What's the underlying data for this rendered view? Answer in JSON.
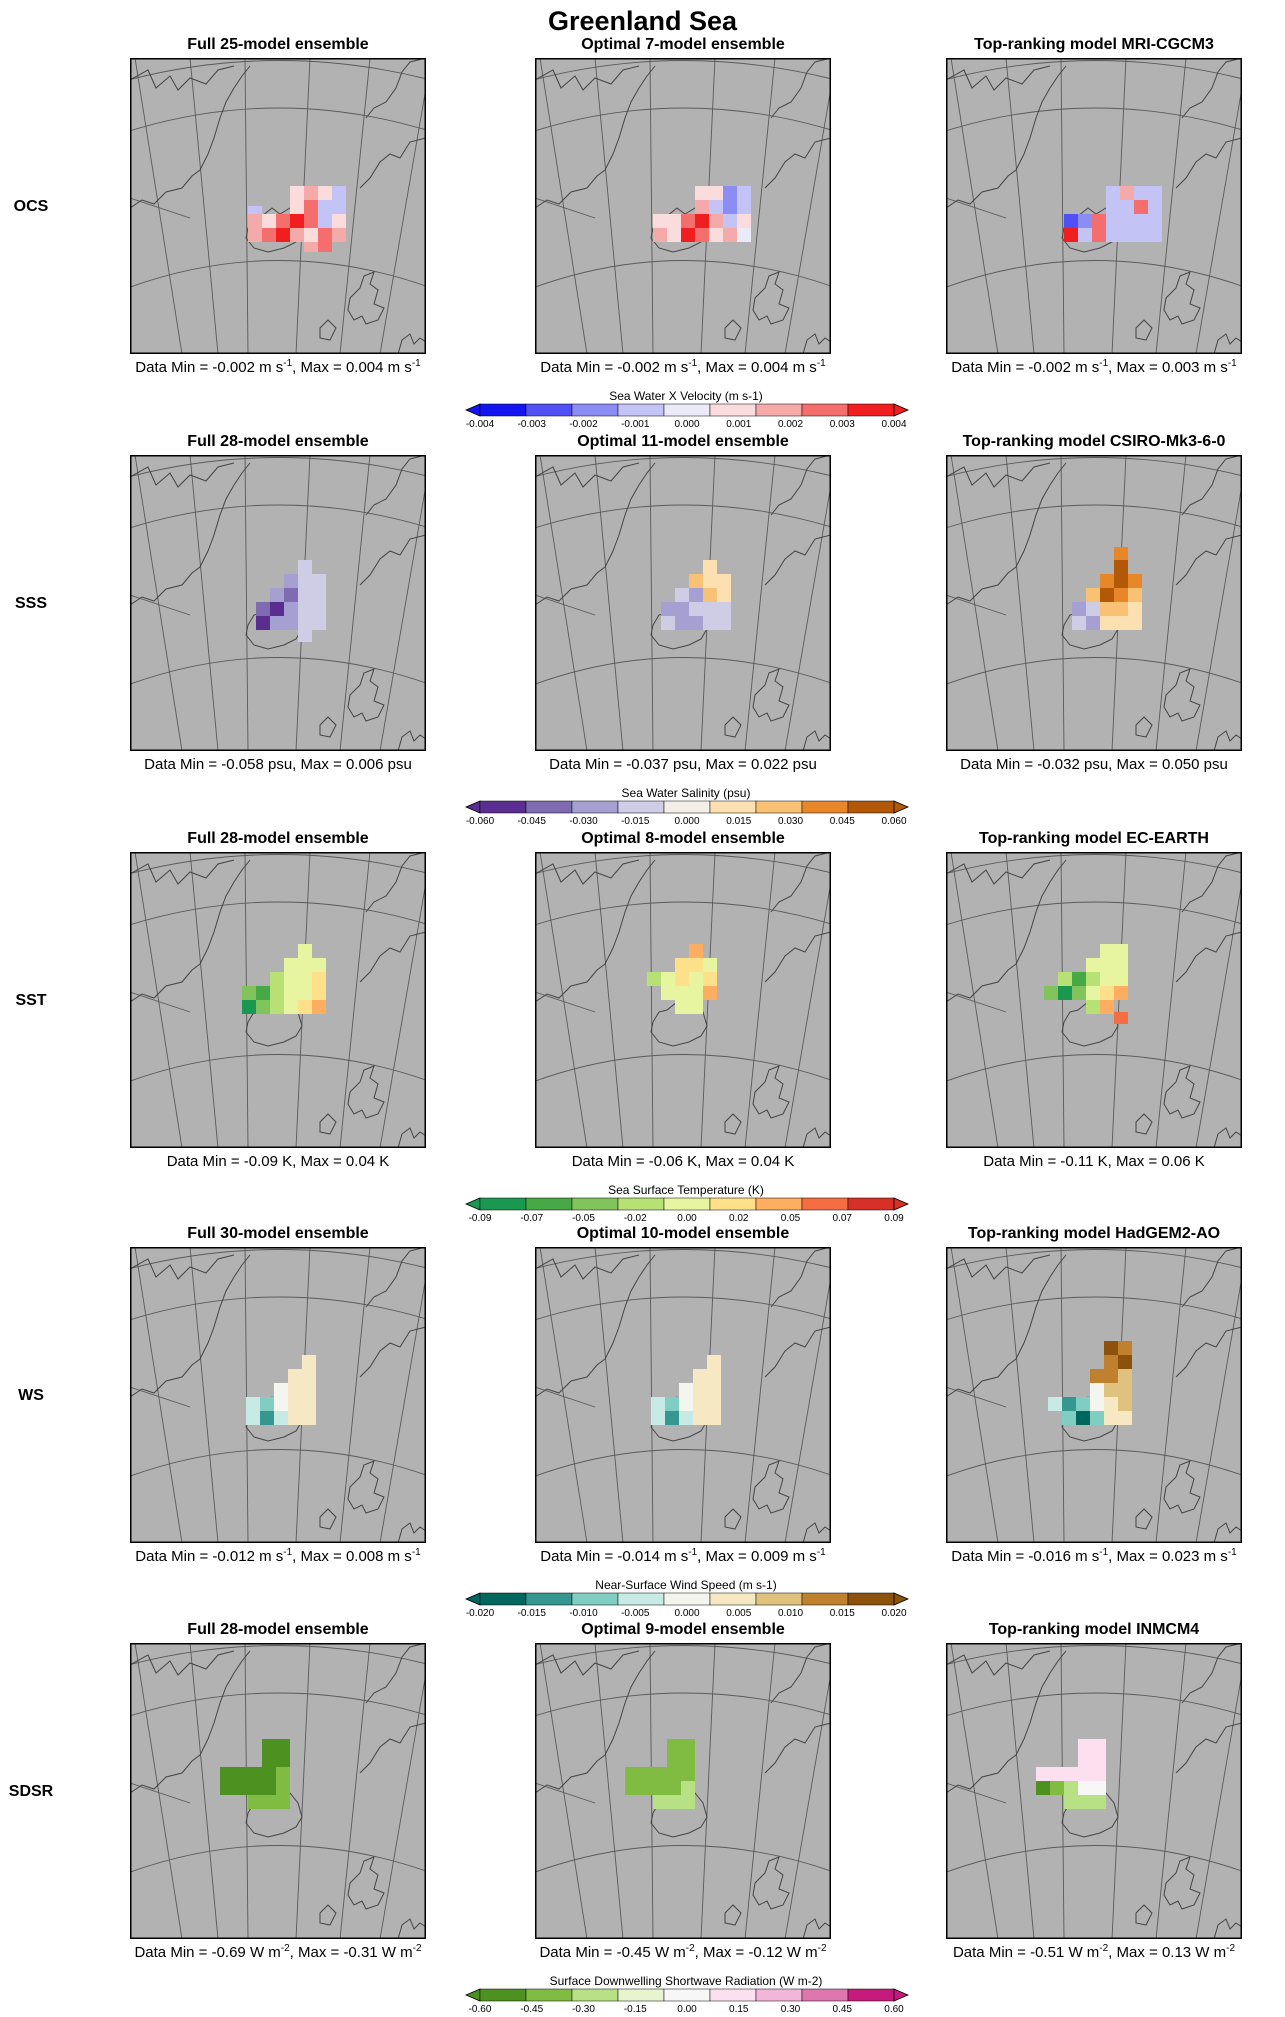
{
  "title": "Greenland Sea",
  "colors": {
    "land": "#b2b2b2",
    "border": "#000000",
    "graticule": "#5a5a5a",
    "coastline": "#444444"
  },
  "rows": [
    {
      "label": "OCS",
      "panels": [
        {
          "title": "Full 25-model ensemble",
          "caption": {
            "prefix": "Data Min = -0.002 m s",
            "sup1": "-1",
            "mid": ", Max = 0.004 m s",
            "sup2": "-1"
          }
        },
        {
          "title": "Optimal 7-model ensemble",
          "caption": {
            "prefix": "Data Min = -0.002 m s",
            "sup1": "-1",
            "mid": ", Max = 0.004 m s",
            "sup2": "-1"
          }
        },
        {
          "title": "Top-ranking model MRI-CGCM3",
          "caption": {
            "prefix": "Data Min = -0.002 m s",
            "sup1": "-1",
            "mid": ", Max = 0.003 m s",
            "sup2": "-1"
          }
        }
      ],
      "colorbar": {
        "title": "Sea Water X Velocity (m s-1)",
        "ticks": [
          "-0.004",
          "-0.003",
          "-0.002",
          "-0.001",
          "0.000",
          "0.001",
          "0.002",
          "0.003",
          "0.004"
        ],
        "colors": [
          "#1414f0",
          "#5050f5",
          "#8c8cf5",
          "#c3c3f5",
          "#eaeaf8",
          "#fbdcdc",
          "#f5aaaa",
          "#f56e6e",
          "#f01e1e"
        ],
        "under_color": "#1414f0",
        "over_color": "#f01e1e"
      }
    },
    {
      "label": "SSS",
      "panels": [
        {
          "title": "Full 28-model ensemble",
          "caption": {
            "prefix": "Data Min = -0.058 psu, Max = 0.006 psu",
            "sup1": "",
            "mid": "",
            "sup2": ""
          }
        },
        {
          "title": "Optimal 11-model ensemble",
          "caption": {
            "prefix": "Data Min = -0.037 psu, Max = 0.022 psu",
            "sup1": "",
            "mid": "",
            "sup2": ""
          }
        },
        {
          "title": "Top-ranking model CSIRO-Mk3-6-0",
          "caption": {
            "prefix": "Data Min = -0.032 psu, Max = 0.050 psu",
            "sup1": "",
            "mid": "",
            "sup2": ""
          }
        }
      ],
      "colorbar": {
        "title": "Sea Water Salinity (psu)",
        "ticks": [
          "-0.060",
          "-0.045",
          "-0.030",
          "-0.015",
          "0.000",
          "0.015",
          "0.030",
          "0.045",
          "0.060"
        ],
        "colors": [
          "#5a2d91",
          "#7e6bb0",
          "#a6a0d2",
          "#cfcce6",
          "#f2efe9",
          "#fce0b2",
          "#f8c173",
          "#e8862a",
          "#b35806"
        ],
        "under_color": "#5a2d91",
        "over_color": "#b35806"
      }
    },
    {
      "label": "SST",
      "panels": [
        {
          "title": "Full 28-model ensemble",
          "caption": {
            "prefix": "Data Min = -0.09 K, Max = 0.04 K",
            "sup1": "",
            "mid": "",
            "sup2": ""
          }
        },
        {
          "title": "Optimal 8-model ensemble",
          "caption": {
            "prefix": "Data Min = -0.06 K, Max = 0.04 K",
            "sup1": "",
            "mid": "",
            "sup2": ""
          }
        },
        {
          "title": "Top-ranking model EC-EARTH",
          "caption": {
            "prefix": "Data Min = -0.11 K, Max = 0.06 K",
            "sup1": "",
            "mid": "",
            "sup2": ""
          }
        }
      ],
      "colorbar": {
        "title": "Sea Surface Temperature (K)",
        "ticks": [
          "-0.09",
          "-0.07",
          "-0.05",
          "-0.02",
          "0.00",
          "0.02",
          "0.05",
          "0.07",
          "0.09"
        ],
        "colors": [
          "#1a9850",
          "#47a946",
          "#82c45c",
          "#b7e075",
          "#e7f5a1",
          "#fee08b",
          "#fdae61",
          "#f46d43",
          "#d73027"
        ],
        "under_color": "#1a9850",
        "over_color": "#d73027"
      }
    },
    {
      "label": "WS",
      "panels": [
        {
          "title": "Full 30-model ensemble",
          "caption": {
            "prefix": "Data Min = -0.012 m s",
            "sup1": "-1",
            "mid": ", Max = 0.008 m s",
            "sup2": "-1"
          }
        },
        {
          "title": "Optimal 10-model ensemble",
          "caption": {
            "prefix": "Data Min = -0.014 m s",
            "sup1": "-1",
            "mid": ", Max = 0.009 m s",
            "sup2": "-1"
          }
        },
        {
          "title": "Top-ranking model HadGEM2-AO",
          "caption": {
            "prefix": "Data Min = -0.016 m s",
            "sup1": "-1",
            "mid": ", Max = 0.023 m s",
            "sup2": "-1"
          }
        }
      ],
      "colorbar": {
        "title": "Near-Surface Wind Speed (m s-1)",
        "ticks": [
          "-0.020",
          "-0.015",
          "-0.010",
          "-0.005",
          "0.000",
          "0.005",
          "0.010",
          "0.015",
          "0.020"
        ],
        "colors": [
          "#01665e",
          "#35978f",
          "#80cdc1",
          "#c7eae5",
          "#f5f5f0",
          "#f6e8c3",
          "#dfc27d",
          "#bf812d",
          "#8c510a"
        ],
        "under_color": "#01665e",
        "over_color": "#8c510a"
      }
    },
    {
      "label": "SDSR",
      "panels": [
        {
          "title": "Full 28-model ensemble",
          "caption": {
            "prefix": "Data Min = -0.69 W m",
            "sup1": "-2",
            "mid": ", Max = -0.31 W m",
            "sup2": "-2"
          }
        },
        {
          "title": "Optimal 9-model ensemble",
          "caption": {
            "prefix": "Data Min = -0.45 W m",
            "sup1": "-2",
            "mid": ", Max = -0.12 W m",
            "sup2": "-2"
          }
        },
        {
          "title": "Top-ranking model INMCM4",
          "caption": {
            "prefix": "Data Min = -0.51 W m",
            "sup1": "-2",
            "mid": ", Max = 0.13 W m",
            "sup2": "-2"
          }
        }
      ],
      "colorbar": {
        "title": "Surface Downwelling Shortwave Radiation (W m-2)",
        "ticks": [
          "-0.60",
          "-0.45",
          "-0.30",
          "-0.15",
          "0.00",
          "0.15",
          "0.30",
          "0.45",
          "0.60"
        ],
        "colors": [
          "#4d9221",
          "#7fbc41",
          "#b8e186",
          "#e6f5d0",
          "#f7f7f7",
          "#fde0ef",
          "#f1b6da",
          "#de77ae",
          "#c51b7d"
        ],
        "under_color": "#4d9221",
        "over_color": "#c51b7d"
      }
    }
  ],
  "chart_data": [
    {
      "type": "heatmap",
      "title": "Greenland Sea",
      "row": "OCS",
      "variable": "Sea Water X Velocity (m s-1)",
      "panels": [
        {
          "name": "Full 25-model ensemble",
          "min": -0.002,
          "max": 0.004
        },
        {
          "name": "Optimal 7-model ensemble",
          "min": -0.002,
          "max": 0.004
        },
        {
          "name": "Top-ranking model MRI-CGCM3",
          "min": -0.002,
          "max": 0.003
        }
      ],
      "colorbar_range": [
        -0.004,
        0.004
      ]
    },
    {
      "type": "heatmap",
      "row": "SSS",
      "variable": "Sea Water Salinity (psu)",
      "panels": [
        {
          "name": "Full 28-model ensemble",
          "min": -0.058,
          "max": 0.006
        },
        {
          "name": "Optimal 11-model ensemble",
          "min": -0.037,
          "max": 0.022
        },
        {
          "name": "Top-ranking model CSIRO-Mk3-6-0",
          "min": -0.032,
          "max": 0.05
        }
      ],
      "colorbar_range": [
        -0.06,
        0.06
      ]
    },
    {
      "type": "heatmap",
      "row": "SST",
      "variable": "Sea Surface Temperature (K)",
      "panels": [
        {
          "name": "Full 28-model ensemble",
          "min": -0.09,
          "max": 0.04
        },
        {
          "name": "Optimal 8-model ensemble",
          "min": -0.06,
          "max": 0.04
        },
        {
          "name": "Top-ranking model EC-EARTH",
          "min": -0.11,
          "max": 0.06
        }
      ],
      "colorbar_range": [
        -0.09,
        0.09
      ]
    },
    {
      "type": "heatmap",
      "row": "WS",
      "variable": "Near-Surface Wind Speed (m s-1)",
      "panels": [
        {
          "name": "Full 30-model ensemble",
          "min": -0.012,
          "max": 0.008
        },
        {
          "name": "Optimal 10-model ensemble",
          "min": -0.014,
          "max": 0.009
        },
        {
          "name": "Top-ranking model HadGEM2-AO",
          "min": -0.016,
          "max": 0.023
        }
      ],
      "colorbar_range": [
        -0.02,
        0.02
      ]
    },
    {
      "type": "heatmap",
      "row": "SDSR",
      "variable": "Surface Downwelling Shortwave Radiation (W m-2)",
      "panels": [
        {
          "name": "Full 28-model ensemble",
          "min": -0.69,
          "max": -0.31
        },
        {
          "name": "Optimal 9-model ensemble",
          "min": -0.45,
          "max": -0.12
        },
        {
          "name": "Top-ranking model INMCM4",
          "min": -0.51,
          "max": 0.13
        }
      ],
      "colorbar_range": [
        -0.6,
        0.6
      ]
    }
  ]
}
